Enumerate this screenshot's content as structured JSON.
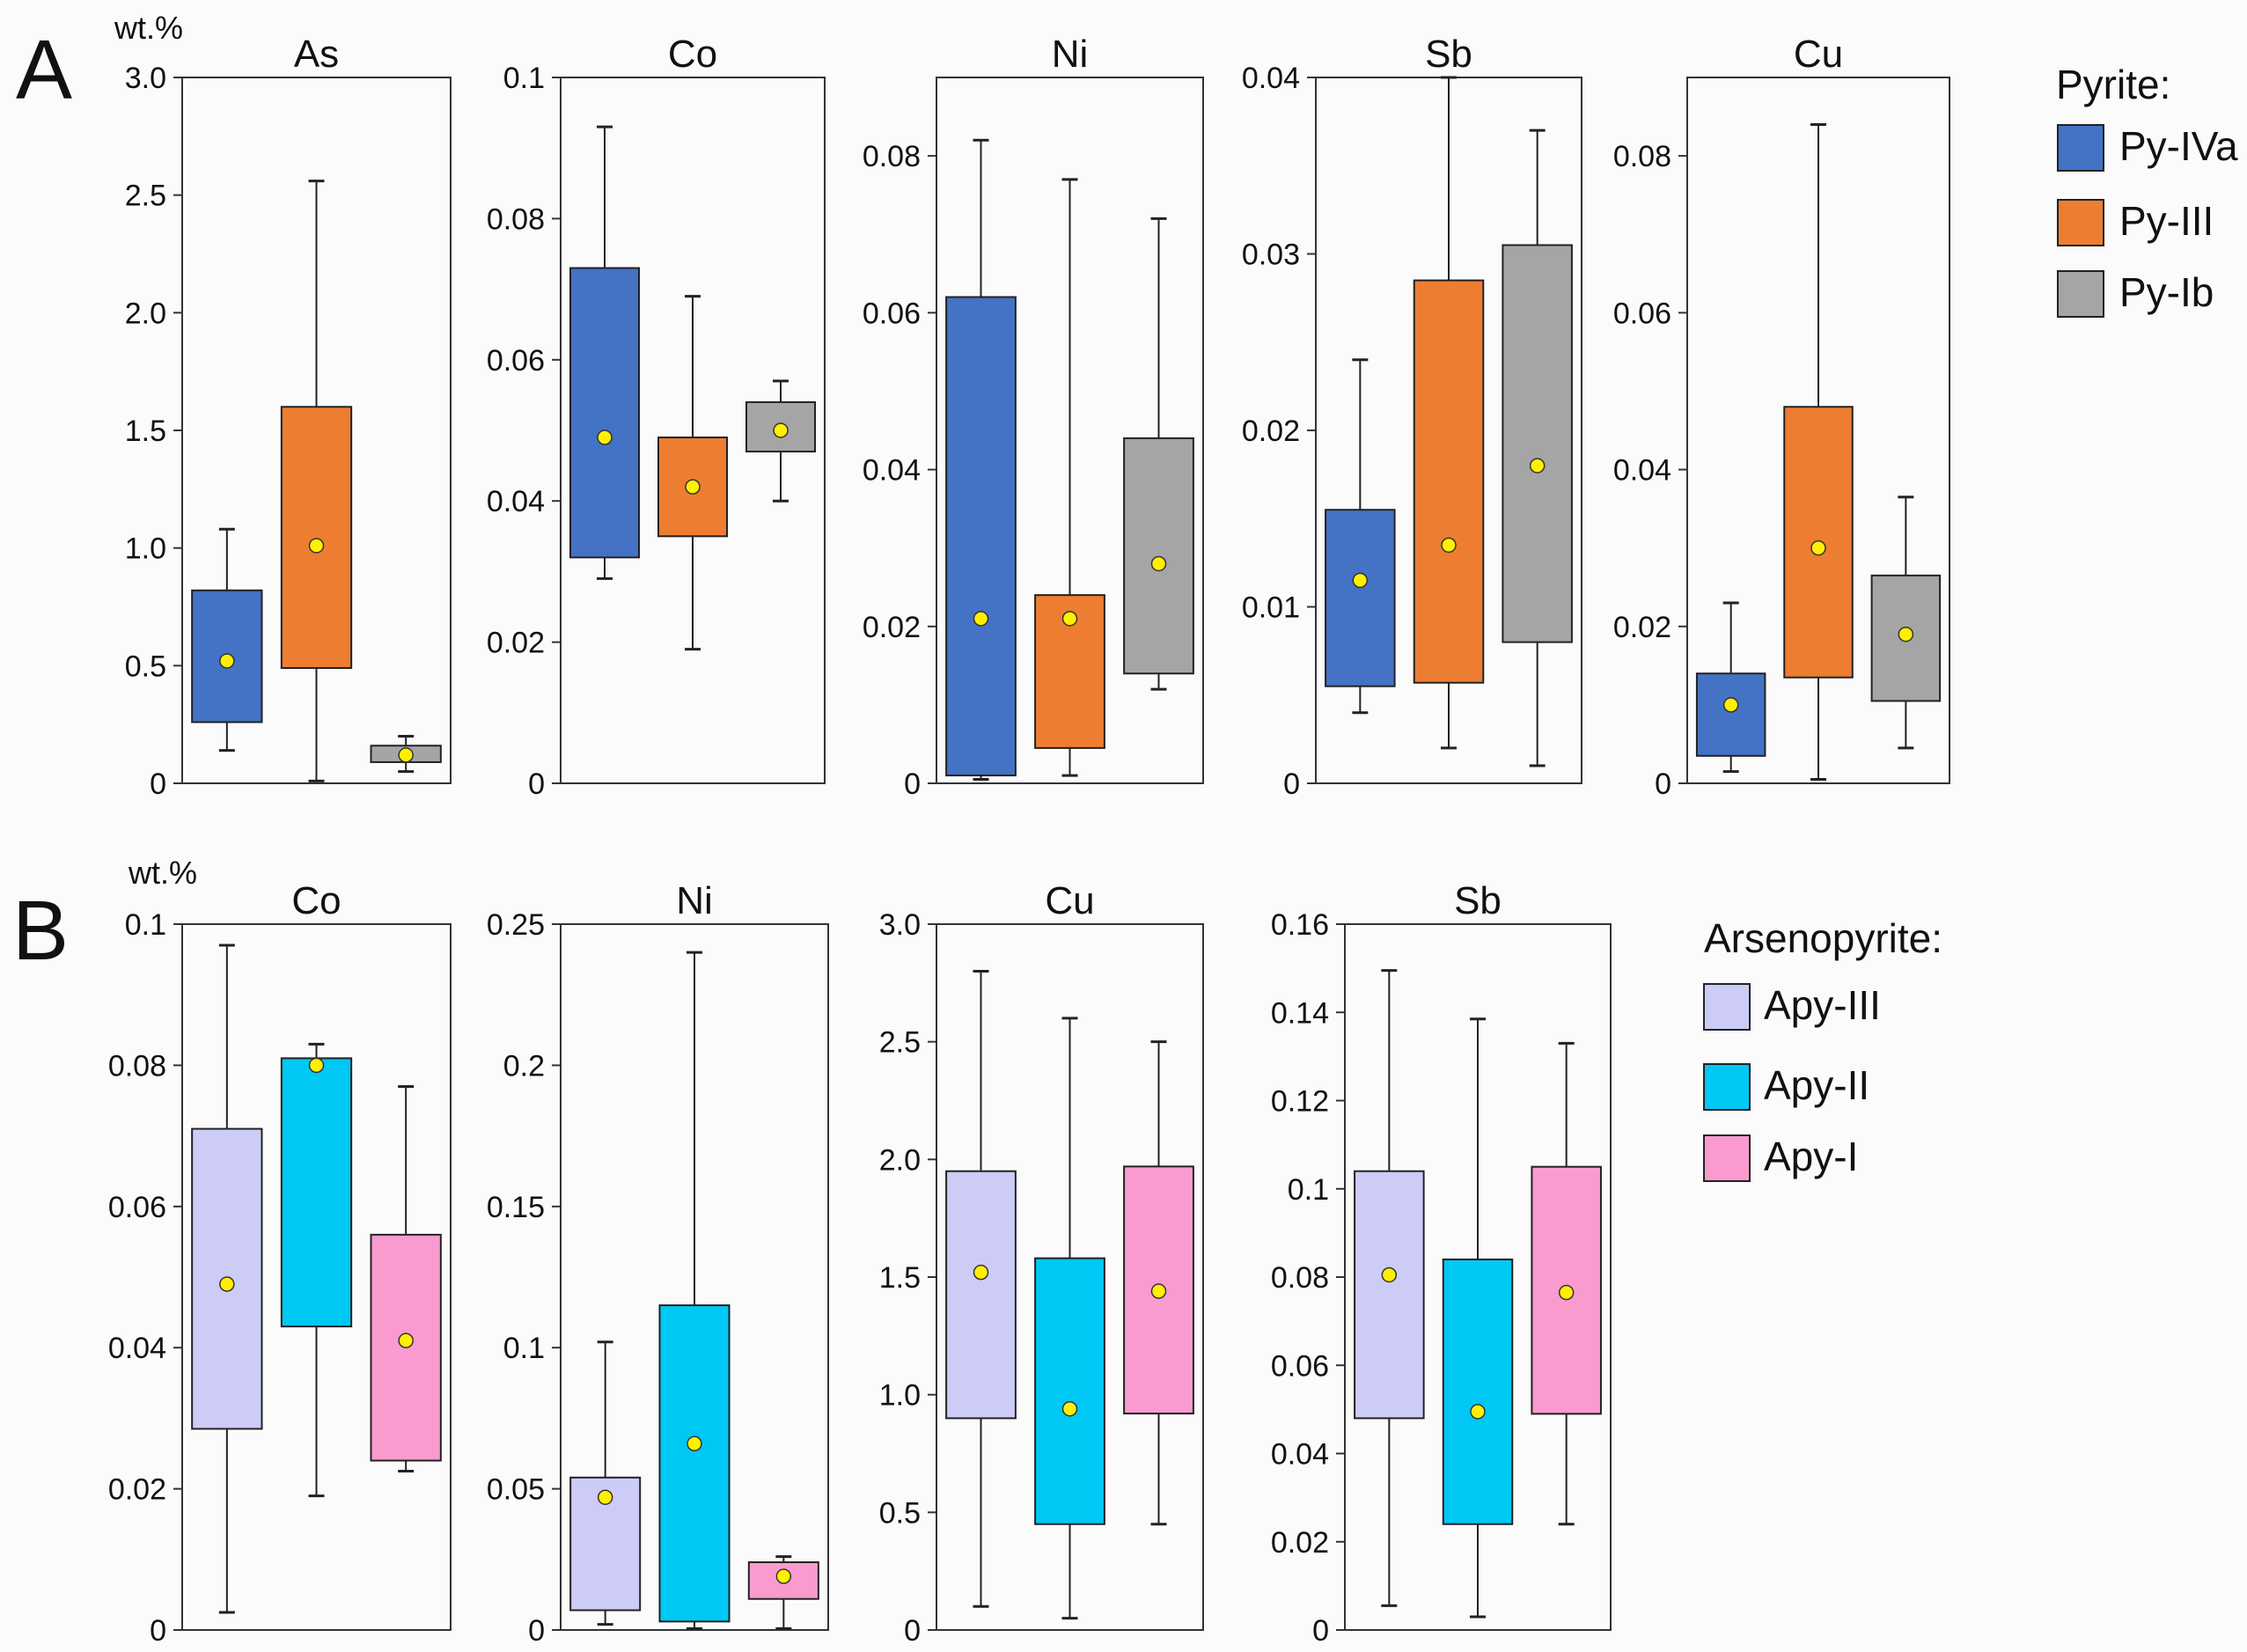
{
  "chart_data": [
    {
      "type": "boxplot",
      "section_label": "A",
      "unit_label": "wt.%",
      "legend": {
        "title": "Pyrite:",
        "items": [
          {
            "name": "Py-IVa",
            "color": "#4472c4"
          },
          {
            "name": "Py-III",
            "color": "#ed7d31"
          },
          {
            "name": "Py-Ib",
            "color": "#a5a5a5"
          }
        ]
      },
      "panels": [
        {
          "title": "As",
          "ylim": [
            0,
            3.0
          ],
          "ticks": [
            "0",
            "0.5",
            "1.0",
            "1.5",
            "2.0",
            "2.5",
            "3.0"
          ],
          "tickvals": [
            0,
            0.5,
            1.0,
            1.5,
            2.0,
            2.5,
            3.0
          ],
          "boxes": [
            {
              "series": "Py-IVa",
              "min": 0.14,
              "q1": 0.26,
              "mean": 0.52,
              "q3": 0.82,
              "max": 1.08
            },
            {
              "series": "Py-III",
              "min": 0.01,
              "q1": 0.49,
              "mean": 1.01,
              "q3": 1.6,
              "max": 2.56
            },
            {
              "series": "Py-Ib",
              "min": 0.05,
              "q1": 0.09,
              "mean": 0.12,
              "q3": 0.16,
              "max": 0.2
            }
          ]
        },
        {
          "title": "Co",
          "ylim": [
            0,
            0.1
          ],
          "ticks": [
            "0",
            "0.02",
            "0.04",
            "0.06",
            "0.08",
            "0.1"
          ],
          "tickvals": [
            0,
            0.02,
            0.04,
            0.06,
            0.08,
            0.1
          ],
          "boxes": [
            {
              "series": "Py-IVa",
              "min": 0.029,
              "q1": 0.032,
              "mean": 0.049,
              "q3": 0.073,
              "max": 0.093
            },
            {
              "series": "Py-III",
              "min": 0.019,
              "q1": 0.035,
              "mean": 0.042,
              "q3": 0.049,
              "max": 0.069
            },
            {
              "series": "Py-Ib",
              "min": 0.04,
              "q1": 0.047,
              "mean": 0.05,
              "q3": 0.054,
              "max": 0.057
            }
          ]
        },
        {
          "title": "Ni",
          "ylim": [
            0,
            0.09
          ],
          "ticks": [
            "0",
            "0.02",
            "0.04",
            "0.06",
            "0.08"
          ],
          "tickvals": [
            0,
            0.02,
            0.04,
            0.06,
            0.08
          ],
          "boxes": [
            {
              "series": "Py-IVa",
              "min": 0.0005,
              "q1": 0.001,
              "mean": 0.021,
              "q3": 0.062,
              "max": 0.082
            },
            {
              "series": "Py-III",
              "min": 0.001,
              "q1": 0.0045,
              "mean": 0.021,
              "q3": 0.024,
              "max": 0.077
            },
            {
              "series": "Py-Ib",
              "min": 0.012,
              "q1": 0.014,
              "mean": 0.028,
              "q3": 0.044,
              "max": 0.072
            }
          ]
        },
        {
          "title": "Sb",
          "ylim": [
            0,
            0.04
          ],
          "ticks": [
            "0",
            "0.01",
            "0.02",
            "0.03",
            "0.04"
          ],
          "tickvals": [
            0,
            0.01,
            0.02,
            0.03,
            0.04
          ],
          "boxes": [
            {
              "series": "Py-IVa",
              "min": 0.004,
              "q1": 0.0055,
              "mean": 0.0115,
              "q3": 0.0155,
              "max": 0.024
            },
            {
              "series": "Py-III",
              "min": 0.002,
              "q1": 0.0057,
              "mean": 0.0135,
              "q3": 0.0285,
              "max": 0.04
            },
            {
              "series": "Py-Ib",
              "min": 0.001,
              "q1": 0.008,
              "mean": 0.018,
              "q3": 0.0305,
              "max": 0.037
            }
          ]
        },
        {
          "title": "Cu",
          "ylim": [
            0,
            0.09
          ],
          "ticks": [
            "0",
            "0.02",
            "0.04",
            "0.06",
            "0.08"
          ],
          "tickvals": [
            0,
            0.02,
            0.04,
            0.06,
            0.08
          ],
          "boxes": [
            {
              "series": "Py-IVa",
              "min": 0.0015,
              "q1": 0.0035,
              "mean": 0.01,
              "q3": 0.014,
              "max": 0.023
            },
            {
              "series": "Py-III",
              "min": 0.0005,
              "q1": 0.0135,
              "mean": 0.03,
              "q3": 0.048,
              "max": 0.084
            },
            {
              "series": "Py-Ib",
              "min": 0.0045,
              "q1": 0.0105,
              "mean": 0.019,
              "q3": 0.0265,
              "max": 0.0365
            }
          ]
        }
      ]
    },
    {
      "type": "boxplot",
      "section_label": "B",
      "unit_label": "wt.%",
      "legend": {
        "title": "Arsenopyrite:",
        "items": [
          {
            "name": "Apy-III",
            "color": "#ccccf7"
          },
          {
            "name": "Apy-II",
            "color": "#00c8f5"
          },
          {
            "name": "Apy-I",
            "color": "#f99bcf"
          }
        ]
      },
      "panels": [
        {
          "title": "Co",
          "ylim": [
            0,
            0.1
          ],
          "ticks": [
            "0",
            "0.02",
            "0.04",
            "0.06",
            "0.08",
            "0.1"
          ],
          "tickvals": [
            0,
            0.02,
            0.04,
            0.06,
            0.08,
            0.1
          ],
          "boxes": [
            {
              "series": "Apy-III",
              "min": 0.0025,
              "q1": 0.0285,
              "mean": 0.049,
              "q3": 0.071,
              "max": 0.097
            },
            {
              "series": "Apy-II",
              "min": 0.019,
              "q1": 0.043,
              "mean": 0.08,
              "q3": 0.081,
              "max": 0.083
            },
            {
              "series": "Apy-I",
              "min": 0.0225,
              "q1": 0.024,
              "mean": 0.041,
              "q3": 0.056,
              "max": 0.077
            }
          ]
        },
        {
          "title": "Ni",
          "ylim": [
            0,
            0.25
          ],
          "ticks": [
            "0",
            "0.05",
            "0.1",
            "0.15",
            "0.2",
            "0.25"
          ],
          "tickvals": [
            0,
            0.05,
            0.1,
            0.15,
            0.2,
            0.25
          ],
          "boxes": [
            {
              "series": "Apy-III",
              "min": 0.002,
              "q1": 0.007,
              "mean": 0.047,
              "q3": 0.054,
              "max": 0.102
            },
            {
              "series": "Apy-II",
              "min": 0.0005,
              "q1": 0.003,
              "mean": 0.066,
              "q3": 0.115,
              "max": 0.24
            },
            {
              "series": "Apy-I",
              "min": 0.0005,
              "q1": 0.011,
              "mean": 0.019,
              "q3": 0.024,
              "max": 0.026
            }
          ]
        },
        {
          "title": "Cu",
          "ylim": [
            0,
            3.0
          ],
          "ticks": [
            "0",
            "0.5",
            "1.0",
            "1.5",
            "2.0",
            "2.5",
            "3.0"
          ],
          "tickvals": [
            0,
            0.5,
            1.0,
            1.5,
            2.0,
            2.5,
            3.0
          ],
          "boxes": [
            {
              "series": "Apy-III",
              "min": 0.1,
              "q1": 0.9,
              "mean": 1.52,
              "q3": 1.95,
              "max": 2.8
            },
            {
              "series": "Apy-II",
              "min": 0.05,
              "q1": 0.45,
              "mean": 0.94,
              "q3": 1.58,
              "max": 2.6
            },
            {
              "series": "Apy-I",
              "min": 0.45,
              "q1": 0.92,
              "mean": 1.44,
              "q3": 1.97,
              "max": 2.5
            }
          ]
        },
        {
          "title": "Sb",
          "ylim": [
            0,
            0.16
          ],
          "ticks": [
            "0",
            "0.02",
            "0.04",
            "0.06",
            "0.08",
            "0.1",
            "0.12",
            "0.14",
            "0.16"
          ],
          "tickvals": [
            0,
            0.02,
            0.04,
            0.06,
            0.08,
            0.1,
            0.12,
            0.14,
            0.16
          ],
          "boxes": [
            {
              "series": "Apy-III",
              "min": 0.0055,
              "q1": 0.048,
              "mean": 0.0805,
              "q3": 0.104,
              "max": 0.1495
            },
            {
              "series": "Apy-II",
              "min": 0.003,
              "q1": 0.024,
              "mean": 0.0495,
              "q3": 0.084,
              "max": 0.1385
            },
            {
              "series": "Apy-I",
              "min": 0.024,
              "q1": 0.049,
              "mean": 0.0765,
              "q3": 0.105,
              "max": 0.133
            }
          ]
        }
      ]
    }
  ]
}
